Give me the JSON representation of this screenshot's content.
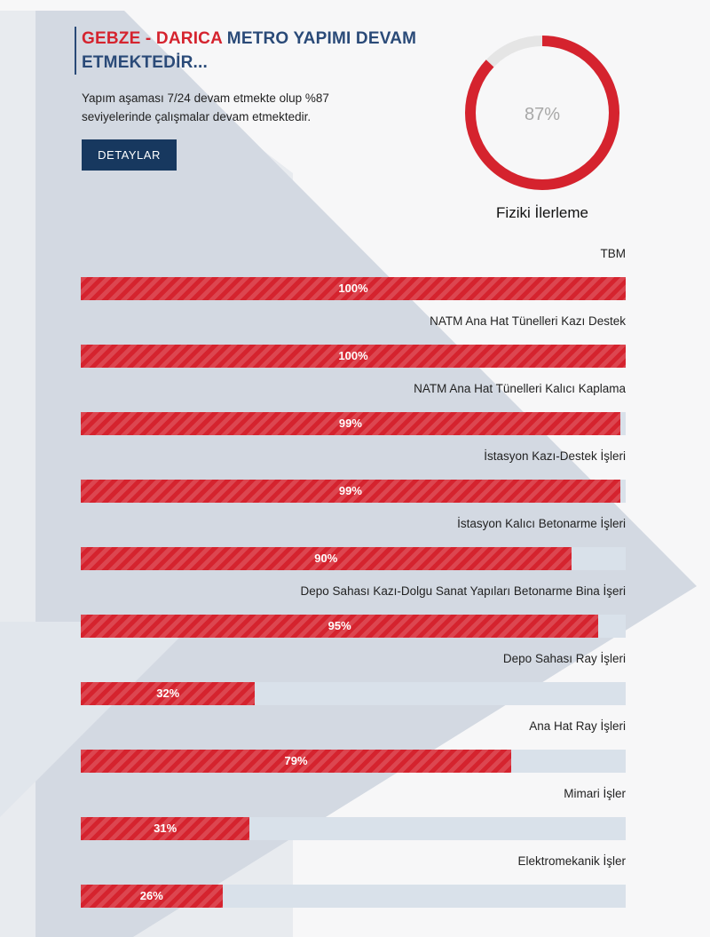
{
  "header": {
    "title_accent": "GEBZE - DARICA",
    "title_rest": " METRO YAPIMI DEVAM ETMEKTEDİR...",
    "description": "Yapım aşaması 7/24 devam etmekte olup %87 seviyelerinde çalışmalar devam etmektedir.",
    "button_label": "DETAYLAR"
  },
  "gauge": {
    "value": 87,
    "label": "87%",
    "caption": "Fiziki İlerleme"
  },
  "colors": {
    "accent_red": "#d5232e",
    "navy": "#17385f",
    "title_blue": "#2a4a78",
    "track": "#d9e1ea",
    "gauge_track": "#e5e5e5",
    "gauge_text": "#a8a8a8"
  },
  "progress_items": [
    {
      "label": "TBM",
      "value": 100,
      "value_label": "100%"
    },
    {
      "label": "NATM Ana Hat Tünelleri Kazı Destek",
      "value": 100,
      "value_label": "100%"
    },
    {
      "label": "NATM Ana Hat Tünelleri Kalıcı Kaplama",
      "value": 99,
      "value_label": "99%"
    },
    {
      "label": "İstasyon Kazı-Destek İşleri",
      "value": 99,
      "value_label": "99%"
    },
    {
      "label": "İstasyon Kalıcı Betonarme İşleri",
      "value": 90,
      "value_label": "90%"
    },
    {
      "label": "Depo Sahası Kazı-Dolgu Sanat Yapıları Betonarme Bina İşeri",
      "value": 95,
      "value_label": "95%"
    },
    {
      "label": "Depo Sahası Ray İşleri",
      "value": 32,
      "value_label": "32%"
    },
    {
      "label": "Ana Hat Ray İşleri",
      "value": 79,
      "value_label": "79%"
    },
    {
      "label": "Mimari İşler",
      "value": 31,
      "value_label": "31%"
    },
    {
      "label": "Elektromekanik İşler",
      "value": 26,
      "value_label": "26%"
    }
  ]
}
